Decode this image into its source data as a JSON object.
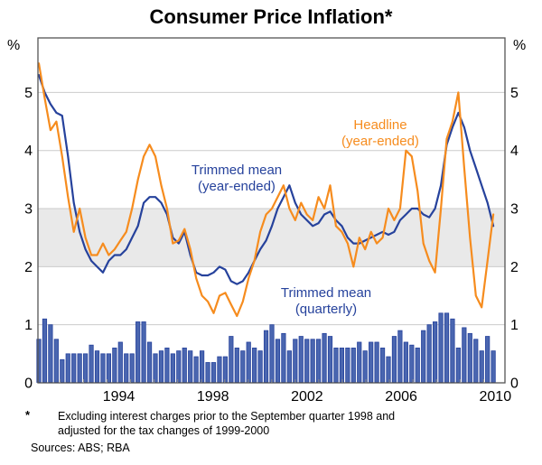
{
  "title": "Consumer Price Inflation*",
  "unit": "%",
  "labels": {
    "headline": {
      "line1": "Headline",
      "line2": "(year-ended)"
    },
    "trimmed_year_ended": {
      "line1": "Trimmed mean",
      "line2": "(year-ended)"
    },
    "trimmed_quarterly": {
      "line1": "Trimmed mean",
      "line2": "(quarterly)"
    }
  },
  "footnote": {
    "marker": "*",
    "line1": "Excluding interest charges prior to the September quarter 1998 and",
    "line2": "adjusted for  the tax changes of 1999-2000",
    "sources": "Sources: ABS; RBA"
  },
  "colors": {
    "headline_line": "#f68c1e",
    "trimmed_line": "#26429c",
    "bar_fill": "#4a66b0",
    "bar_stroke": "#26429c",
    "target_band": "#e9e9e9",
    "gridline": "#cccccc",
    "axis": "#555555"
  },
  "chart_data": {
    "type": "combo",
    "title": "Consumer Price Inflation*",
    "ylabel": "%",
    "ylim": [
      0,
      6
    ],
    "y_ticks": [
      0,
      1,
      2,
      3,
      4,
      5
    ],
    "x_tick_years": [
      1994,
      1998,
      2002,
      2006,
      2010
    ],
    "target_band": {
      "from": 2,
      "to": 3
    },
    "legend_position": "inline-annotations",
    "grid": "horizontal",
    "quarters": [
      "1990Q3",
      "1990Q4",
      "1991Q1",
      "1991Q2",
      "1991Q3",
      "1991Q4",
      "1992Q1",
      "1992Q2",
      "1992Q3",
      "1992Q4",
      "1993Q1",
      "1993Q2",
      "1993Q3",
      "1993Q4",
      "1994Q1",
      "1994Q2",
      "1994Q3",
      "1994Q4",
      "1995Q1",
      "1995Q2",
      "1995Q3",
      "1995Q4",
      "1996Q1",
      "1996Q2",
      "1996Q3",
      "1996Q4",
      "1997Q1",
      "1997Q2",
      "1997Q3",
      "1997Q4",
      "1998Q1",
      "1998Q2",
      "1998Q3",
      "1998Q4",
      "1999Q1",
      "1999Q2",
      "1999Q3",
      "1999Q4",
      "2000Q1",
      "2000Q2",
      "2000Q3",
      "2000Q4",
      "2001Q1",
      "2001Q2",
      "2001Q3",
      "2001Q4",
      "2002Q1",
      "2002Q2",
      "2002Q3",
      "2002Q4",
      "2003Q1",
      "2003Q2",
      "2003Q3",
      "2003Q4",
      "2004Q1",
      "2004Q2",
      "2004Q3",
      "2004Q4",
      "2005Q1",
      "2005Q2",
      "2005Q3",
      "2005Q4",
      "2006Q1",
      "2006Q2",
      "2006Q3",
      "2006Q4",
      "2007Q1",
      "2007Q2",
      "2007Q3",
      "2007Q4",
      "2008Q1",
      "2008Q2",
      "2008Q3",
      "2008Q4",
      "2009Q1",
      "2009Q2",
      "2009Q3",
      "2009Q4",
      "2010Q1"
    ],
    "series": [
      {
        "name": "Trimmed mean (quarterly)",
        "type": "bar",
        "values": [
          0.75,
          1.1,
          1.0,
          0.75,
          0.4,
          0.5,
          0.5,
          0.5,
          0.5,
          0.65,
          0.55,
          0.5,
          0.5,
          0.6,
          0.7,
          0.5,
          0.5,
          1.05,
          1.05,
          0.7,
          0.5,
          0.55,
          0.6,
          0.5,
          0.55,
          0.6,
          0.55,
          0.45,
          0.55,
          0.35,
          0.35,
          0.45,
          0.45,
          0.8,
          0.6,
          0.55,
          0.7,
          0.6,
          0.55,
          0.9,
          1.0,
          0.75,
          0.85,
          0.55,
          0.75,
          0.8,
          0.75,
          0.75,
          0.75,
          0.85,
          0.8,
          0.6,
          0.6,
          0.6,
          0.6,
          0.7,
          0.55,
          0.7,
          0.7,
          0.6,
          0.45,
          0.8,
          0.9,
          0.7,
          0.65,
          0.6,
          0.9,
          1.0,
          1.05,
          1.2,
          1.2,
          1.1,
          0.6,
          0.95,
          0.85,
          0.75,
          0.55,
          0.8,
          0.55
        ]
      },
      {
        "name": "Trimmed mean (year-ended)",
        "type": "line",
        "values": [
          5.3,
          5.0,
          4.8,
          4.65,
          4.6,
          3.9,
          3.1,
          2.6,
          2.3,
          2.1,
          2.0,
          1.9,
          2.1,
          2.2,
          2.2,
          2.3,
          2.5,
          2.7,
          3.1,
          3.2,
          3.2,
          3.1,
          2.9,
          2.5,
          2.4,
          2.6,
          2.2,
          1.9,
          1.85,
          1.85,
          1.9,
          2.0,
          1.95,
          1.75,
          1.7,
          1.75,
          1.9,
          2.1,
          2.3,
          2.45,
          2.7,
          3.0,
          3.2,
          3.4,
          3.1,
          2.9,
          2.8,
          2.7,
          2.75,
          2.9,
          2.95,
          2.8,
          2.7,
          2.5,
          2.4,
          2.4,
          2.45,
          2.5,
          2.55,
          2.6,
          2.55,
          2.6,
          2.8,
          2.9,
          3.0,
          3.0,
          2.9,
          2.85,
          3.0,
          3.4,
          4.1,
          4.4,
          4.65,
          4.4,
          4.0,
          3.7,
          3.4,
          3.1,
          2.7
        ]
      },
      {
        "name": "Headline (year-ended)",
        "type": "line",
        "values": [
          5.5,
          4.9,
          4.35,
          4.5,
          3.9,
          3.2,
          2.6,
          3.0,
          2.5,
          2.2,
          2.2,
          2.4,
          2.2,
          2.3,
          2.45,
          2.6,
          3.0,
          3.5,
          3.9,
          4.1,
          3.9,
          3.4,
          3.0,
          2.4,
          2.45,
          2.65,
          2.3,
          1.8,
          1.5,
          1.4,
          1.2,
          1.5,
          1.55,
          1.35,
          1.15,
          1.4,
          1.8,
          2.1,
          2.6,
          2.9,
          3.0,
          3.2,
          3.4,
          3.0,
          2.8,
          3.1,
          2.9,
          2.8,
          3.2,
          3.0,
          3.4,
          2.7,
          2.6,
          2.4,
          2.0,
          2.5,
          2.3,
          2.6,
          2.4,
          2.5,
          3.0,
          2.8,
          3.0,
          4.0,
          3.9,
          3.3,
          2.4,
          2.1,
          1.9,
          3.0,
          4.2,
          4.5,
          5.0,
          3.7,
          2.5,
          1.5,
          1.3,
          2.1,
          2.9
        ]
      }
    ]
  }
}
